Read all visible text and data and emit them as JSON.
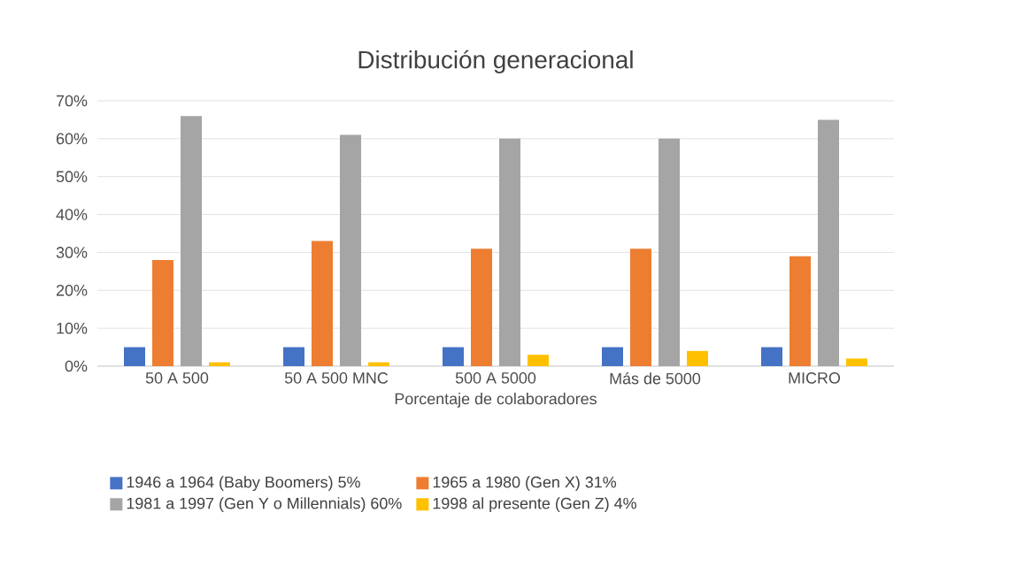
{
  "chart_data": {
    "type": "bar",
    "title": "Distribución generacional",
    "xlabel": "Porcentaje de colaboradores",
    "categories": [
      "50 A 500",
      "50 A 500 MNC",
      "500 A 5000",
      "Más de 5000",
      "MICRO"
    ],
    "series": [
      {
        "name": "1946 a 1964 (Baby Boomers) 5%",
        "color": "#4472c4",
        "values": [
          5,
          5,
          5,
          5,
          5
        ]
      },
      {
        "name": "1965 a 1980 (Gen X) 31%",
        "color": "#ed7d31",
        "values": [
          28,
          33,
          31,
          31,
          29
        ]
      },
      {
        "name": "1981 a 1997 (Gen Y o Millennials) 60%",
        "color": "#a5a5a5",
        "values": [
          66,
          61,
          60,
          60,
          65
        ]
      },
      {
        "name": "1998 al presente (Gen Z) 4%",
        "color": "#ffc000",
        "values": [
          1,
          1,
          3,
          4,
          2
        ]
      }
    ],
    "ylim": [
      0,
      70
    ],
    "yticks": [
      {
        "value": 0,
        "label": "0%"
      },
      {
        "value": 10,
        "label": "10%"
      },
      {
        "value": 20,
        "label": "20%"
      },
      {
        "value": 30,
        "label": "30%"
      },
      {
        "value": 40,
        "label": "40%"
      },
      {
        "value": 50,
        "label": "50%"
      },
      {
        "value": 60,
        "label": "60%"
      },
      {
        "value": 70,
        "label": "70%"
      }
    ],
    "grid": "y",
    "legend": "bottom"
  }
}
